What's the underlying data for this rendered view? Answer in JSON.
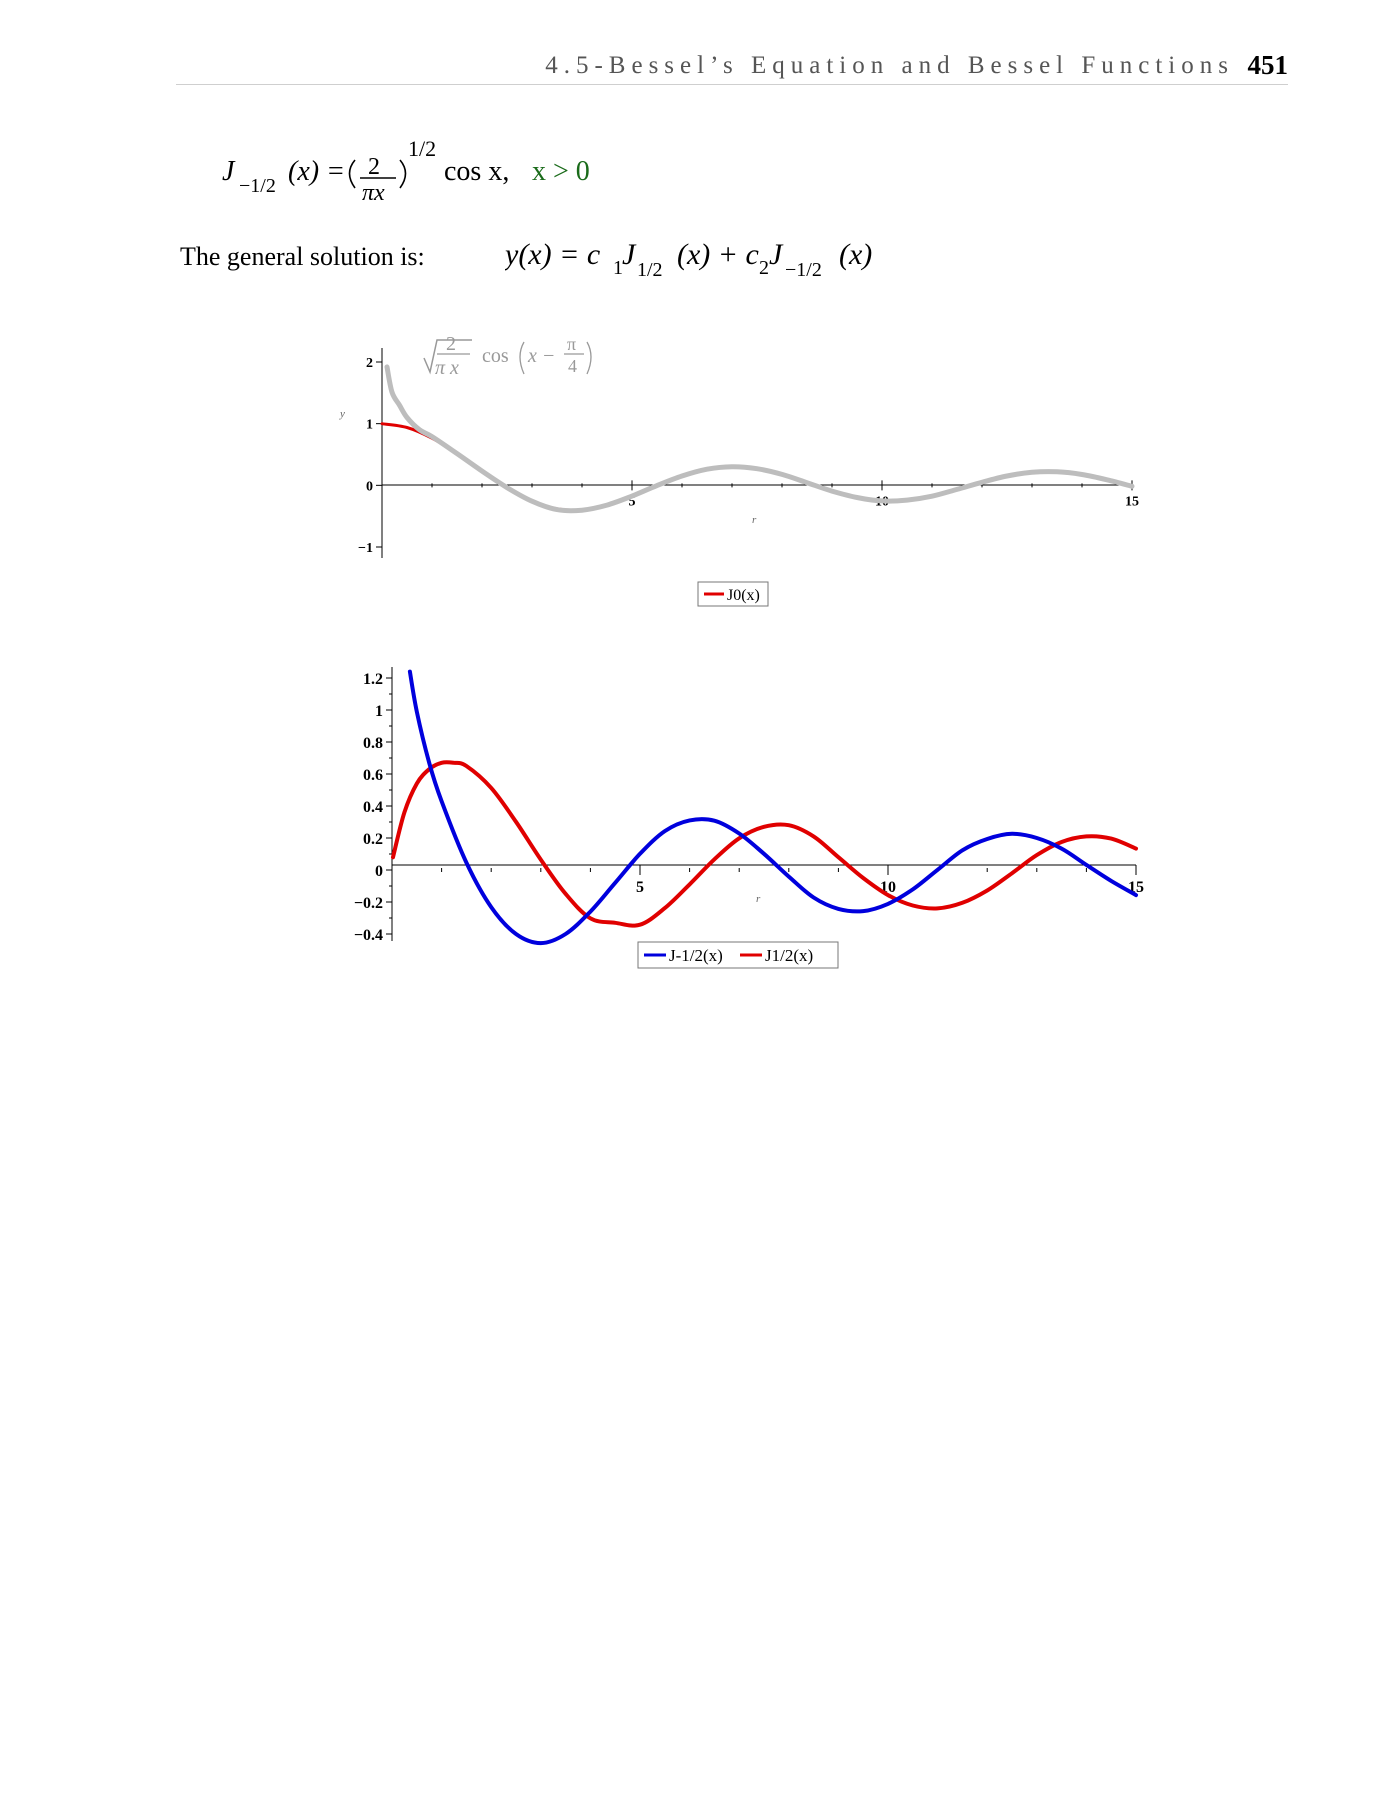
{
  "header": {
    "title": "4.5-Bessel’s Equation and Bessel Functions",
    "page_number": "451"
  },
  "equation1": {
    "lhs": "J",
    "lhs_sub": "−1/2",
    "arg": "(x) =",
    "frac_num": "2",
    "frac_den": "πx",
    "exponent": "1/2",
    "tail": "cos x,",
    "condition": "x > 0",
    "condition_color": "#1a6b1a"
  },
  "general_solution": {
    "label": "The general solution is:",
    "equation": {
      "p1": "y(x) = c",
      "s1": "1",
      "p2": "J",
      "s2": "1/2",
      "p3": "(x) + c",
      "s3": "2",
      "p4": "J",
      "s4": "−1/2",
      "p5": "(x)"
    }
  },
  "chart_data": [
    {
      "type": "line",
      "xlim": [
        0,
        15
      ],
      "ylim": [
        -1,
        2
      ],
      "xticks": [
        "5",
        "10",
        "15"
      ],
      "yticks": [
        "2",
        "1",
        "0",
        "−1"
      ],
      "xlabel": "r",
      "ylabel": "y",
      "annotation": {
        "sqrt_num": "2",
        "sqrt_den": "π x",
        "func": "cos",
        "arg_x": "x −",
        "arg_num": "π",
        "arg_den": "4"
      },
      "legend_placement": "bottom-center",
      "series": [
        {
          "name": "J0(x)",
          "color": "#e00000",
          "x": [
            0,
            0.5,
            1,
            1.5,
            2,
            2.5,
            3,
            3.5,
            4,
            4.5,
            5,
            5.5,
            6,
            6.5,
            7,
            7.5,
            8,
            8.5,
            9,
            9.5,
            10,
            10.5,
            11,
            11.5,
            12,
            12.5,
            13,
            13.5,
            14,
            14.5,
            15
          ],
          "y": [
            1,
            0.938,
            0.765,
            0.512,
            0.224,
            -0.048,
            -0.26,
            -0.38,
            -0.397,
            -0.321,
            -0.178,
            -0.007,
            0.151,
            0.26,
            0.3,
            0.266,
            0.172,
            0.042,
            -0.09,
            -0.194,
            -0.246,
            -0.237,
            -0.171,
            -0.068,
            0.048,
            0.147,
            0.207,
            0.215,
            0.171,
            0.088,
            -0.014
          ]
        },
        {
          "color": "#bdbdbd",
          "x": [
            0.1,
            0.2,
            0.35,
            0.5,
            0.75,
            1,
            1.5,
            2,
            2.5,
            3,
            3.5,
            4,
            4.5,
            5,
            5.5,
            6,
            6.5,
            7,
            7.5,
            8,
            8.5,
            9,
            9.5,
            10,
            10.5,
            11,
            11.5,
            12,
            12.5,
            13,
            13.5,
            14,
            14.5,
            15
          ],
          "y": [
            1.92,
            1.51,
            1.3,
            1.1,
            0.9,
            0.79,
            0.515,
            0.231,
            -0.036,
            -0.258,
            -0.393,
            -0.403,
            -0.32,
            -0.174,
            -0.004,
            0.151,
            0.261,
            0.302,
            0.27,
            0.178,
            0.043,
            -0.093,
            -0.198,
            -0.253,
            -0.24,
            -0.176,
            -0.066,
            0.05,
            0.152,
            0.212,
            0.22,
            0.176,
            0.09,
            -0.015
          ]
        }
      ]
    },
    {
      "type": "line",
      "xlim": [
        0,
        15
      ],
      "ylim": [
        -0.4,
        1.2
      ],
      "xticks": [
        "5",
        "10",
        "15"
      ],
      "yticks": [
        "1.2",
        "1",
        "0.8",
        "0.6",
        "0.4",
        "0.2",
        "0",
        "−0.2",
        "−0.4"
      ],
      "xlabel": "r",
      "legend_placement": "bottom-center",
      "series": [
        {
          "name": "J-1/2(x)",
          "color": "#0000dd",
          "x": [
            0.36,
            0.5,
            0.75,
            1,
            1.5,
            2,
            2.5,
            3,
            3.5,
            4,
            4.5,
            5,
            5.5,
            6,
            6.5,
            7,
            7.5,
            8,
            8.5,
            9,
            9.5,
            10,
            10.5,
            11,
            11.5,
            12,
            12.5,
            13,
            13.5,
            14,
            14.5,
            15
          ],
          "y": [
            1.24,
            0.99,
            0.67,
            0.43,
            0.046,
            -0.232,
            -0.4,
            -0.457,
            -0.4,
            -0.26,
            -0.08,
            0.101,
            0.243,
            0.31,
            0.308,
            0.228,
            0.101,
            -0.041,
            -0.172,
            -0.243,
            -0.257,
            -0.212,
            -0.121,
            0.001,
            0.123,
            0.194,
            0.226,
            0.2,
            0.134,
            0.032,
            -0.068,
            -0.157
          ]
        },
        {
          "name": "J1/2(x)",
          "color": "#e00000",
          "x": [
            0.02,
            0.25,
            0.5,
            0.75,
            1,
            1.25,
            1.5,
            2,
            2.5,
            3,
            3.5,
            4,
            4.5,
            5,
            5.5,
            6,
            6.5,
            7,
            7.5,
            8,
            8.5,
            9,
            9.5,
            10,
            10.5,
            11,
            11.5,
            12,
            12.5,
            13,
            13.5,
            14,
            14.5,
            15
          ],
          "y": [
            0.08,
            0.36,
            0.54,
            0.63,
            0.67,
            0.67,
            0.65,
            0.513,
            0.301,
            0.065,
            -0.149,
            -0.302,
            -0.33,
            -0.342,
            -0.238,
            -0.09,
            0.067,
            0.198,
            0.27,
            0.28,
            0.21,
            0.08,
            -0.05,
            -0.157,
            -0.222,
            -0.24,
            -0.205,
            -0.128,
            -0.02,
            0.093,
            0.175,
            0.21,
            0.196,
            0.134
          ]
        }
      ]
    }
  ]
}
